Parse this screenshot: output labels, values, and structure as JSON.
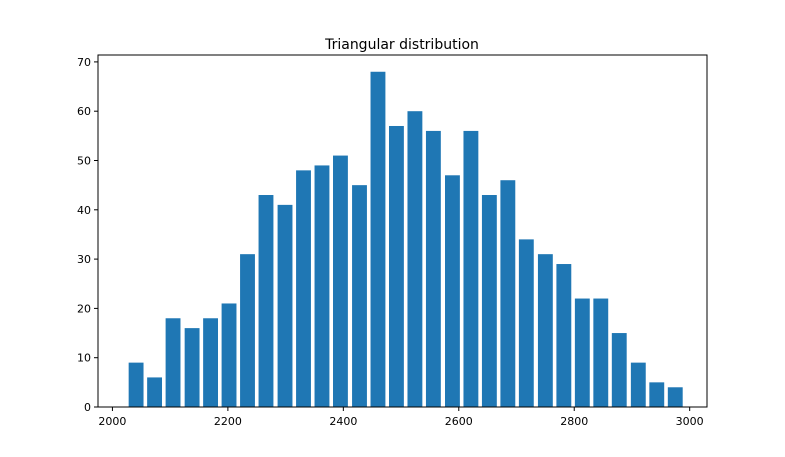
{
  "chart_data": {
    "type": "bar",
    "title": "Triangular distribution",
    "xlabel": "",
    "ylabel": "",
    "bar_color": "#1f77b4",
    "xlim": [
      1975,
      3030
    ],
    "ylim": [
      0,
      71.4
    ],
    "xticks": [
      2000,
      2200,
      2400,
      2600,
      2800,
      3000
    ],
    "yticks": [
      0,
      10,
      20,
      30,
      40,
      50,
      60,
      70
    ],
    "bin_width": 32.2,
    "bar_width_fraction": 0.8,
    "x": [
      2041,
      2073,
      2105,
      2138,
      2170,
      2202,
      2234,
      2266,
      2299,
      2331,
      2363,
      2395,
      2428,
      2460,
      2492,
      2524,
      2556,
      2589,
      2621,
      2653,
      2685,
      2717,
      2750,
      2782,
      2814,
      2846,
      2878,
      2911,
      2943,
      2975
    ],
    "values": [
      9,
      6,
      18,
      16,
      18,
      21,
      31,
      43,
      41,
      48,
      49,
      51,
      45,
      68,
      57,
      60,
      56,
      47,
      56,
      43,
      46,
      34,
      31,
      29,
      22,
      22,
      15,
      9,
      5,
      4
    ],
    "grid": false,
    "legend": "none"
  }
}
